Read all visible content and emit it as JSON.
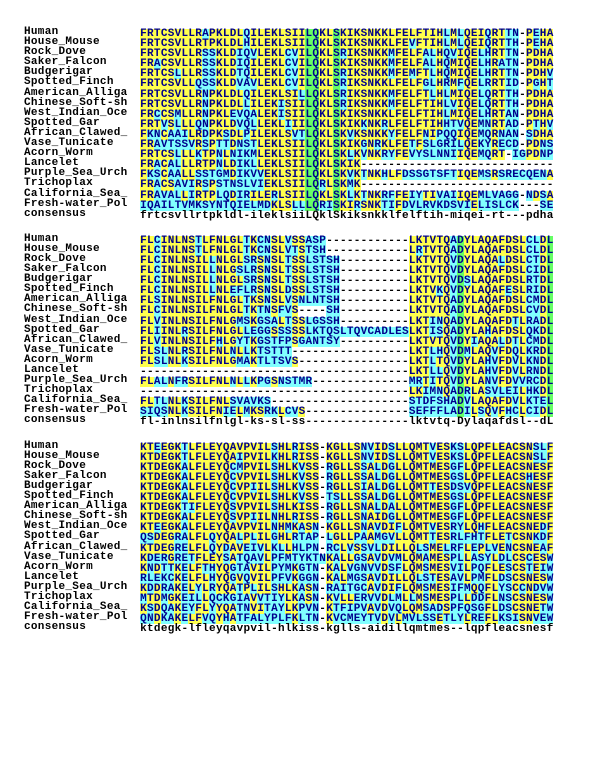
{
  "alignment": {
    "consensus_label": "consensus",
    "row_labels": [
      "Human",
      "House_Mouse",
      "Rock_Dove",
      "Saker_Falcon",
      "Budgerigar",
      "Spotted_Finch",
      "American_Alliga",
      "Chinese_Soft-sh",
      "West_Indian_Oce",
      "Spotted_Gar",
      "African_Clawed_",
      "Vase_Tunicate",
      "Acorn_Worm",
      "Lancelet",
      "Purple_Sea_Urch",
      "Trichoplax",
      "California_Sea_",
      "Fresh-water_Pol"
    ],
    "blocks": [
      {
        "sequences": [
          "FRTCSVLLRAPKLDLQILEKLSIILQKLSKIKSNKKLFELFTIHLMLQEIQRTTN-PEHA",
          "FRTCSVLLRTPKLDLHILEKLSIILQKLSKIKSNKKLFEVFTIHLMLQEIQRTTH-PEHA",
          "FRTCSVLLRSSKLDIQVLEKLCVILQKLSRIKSNKKMFELFALHQVIQELHRTTN-PDHA",
          "FRACSVLLRSSKLDIQILEKLCVILQKLSKIKSNKKMFELFALHQMIQELHRATN-PDHA",
          "FRTCSLLLRSSKLDTQILEKLCVILQKLSRIKSNKKMFEMFTLHQMIQELHRTTN-PDHV",
          "FRTCSVLLQSSKLDVAVLEKLCVILQKLSRIKSNKKLFELFGLHRMFQELRRTID-PGHT",
          "FRTCSVLLRNPKLDLQILEKLSILLQKLSRIKSNKKMFELFTLHLMIQELQRTTH-PDHA",
          "FRTCSVLLRNPKLDLLILEKISIILQKLSRIKSNKKMFELFTIHLVIQELQRTTH-PDHA",
          "FRCCSMLLRNPKLEVQALEKISIILQKLSKIKSNKKLFELFTIHLMIQELHRTAN-PDHA",
          "FRTVSLLLQNPKLDVQLLEKLIIILQKLSKIKKNKRLFELFTIHHTVQEMNRTAD-PTHV",
          "FKNCAAILRDPKSDLPILEKLSVTLQKLSKVKSNKKYFELFNIPQQIQEMQRNAN-SDHA",
          "FRAVTSSVRSPTTDNSTLEKLSIILQKLSKIKGNRKLFETFSLGRILQEKYRECD-PDNS",
          "FRTCSLLLKTPNLNIKMLEKLSIILQKLSKLKVNKRYFEVYSLNNIIQEMQRT-IGPDNP",
          "FRACALLLRTPNLDIKLLEKLSIILQKLSKIK----------------------------",
          "FKSCAALLSSTGMDIKVVEKLSIILQKLSKVKTNKHLFDSSGTSFTIQEMSRSRECQENA",
          "FRACSAVIRSPSTNSLVIEKLSIILQRLSKMK----------------------------",
          "FRAVALLIRTPLQDIRILERLSIILQKLSKLKTNKRFFEIYTIVAIIQEMLVAGG-NDSA",
          "IQAILTVMKSYNTQIELMDKLSLLLQRISKIRSNKTIFDVLRVKDSVIELISLCK---SE"
        ],
        "consensus": "frtcsvllrtpkldl-ileklsiiLQklSkiksnkklfelftih-miqei-rt---pdha"
      },
      {
        "sequences": [
          "FLCINLNSTLFNLGLTKCNSLVSSASP------------LKTVTQADYLAQAFDSLCLDL",
          "FLCINLNSTLFNLGLTKCNSLVTSTSH------------LRTVTQADYLAQAFDSLCLDL",
          "FLCINLNSILLNLGLSRSNSLTSSLSTSH----------LKTVTQVDYLAQALDSLCTDL",
          "FLCINLNSILLNLGSLRSNSLTSSLSTSH----------LKTVTQVDYLAQAFDSLCIDL",
          "FLCINLNSILLNLGLSRSNSLTSSLSTSH----------LKTVTQVDSLAQAFDSLRTDL",
          "FLCINLNSILLNLEFLRSNSLDSSLSTSH----------LKTVKQVDYLAQAFESLRIDL",
          "FLSINLNSILFNLGLTKSNSLVSNLNTSH----------LKTVTQADYLAQAFDSLCMDL",
          "FLCINLNSILFNLGLTKTNSFVS----SH----------LKTVTQADYLAQAFDSLCVDL",
          "FLVINLNSILFNLGMSKGSALTSSLGSSH----------LKTINQADYLAQAFDTLRADL",
          "FLIINLRSILFNLGLLEGGSSSSSLKTQSLTQVCADLESLKTISQADYLAHAFDSLQKDL",
          "FLVINLNSILFHLGYTKGSTFPSGANTSY----------LKTVTQVDYIAQALDTLCMDL",
          "FLSLNLRSILFNLNLLKTSTTT-----------------LKTLHQVDMLAQVFDQLKRDL",
          "FLSLNLKSILFNLGMAKTLTSVS----------------LKTLTQVDYLAHVFDVLKNDL",
          "---------------------------------------LKTLLQVDYLAHVFDVLRNDL",
          "FLALNFRSILFNLNLLKPGSNSTMR--------------MRTITQVDYLANVFDVVRCDL",
          "---------------------------------------LKIMNQADRLASVLEILHKDL",
          "FLTLNLKSILFNLSVAVKS--------------------STDFSHADVLAQAFDVLKTEL",
          "SIQSNLKSILFNIELMKSRKLCVS---------------SEFFFLADILSQVFHCLCIDL"
        ],
        "consensus": "fl-inlnsilfnlgl-ks-sl-ss---------------lktvtq-Dylaqafdsl--dL"
      },
      {
        "sequences": [
          "KTEEGKTLFLEYQAVPVILSHLRISS-KGLLSNVIDSLLQMTVESKSLQPFLEACSNSLF",
          "KTDEGKTLFLEYQAIPVILKHLRISS-KGLLSNVIDSLLQMTVESKSLQPFLEACSNSLF",
          "KTDEGKALFLEYQCMPVILSHLKVSS-RGLLSSALDGLLQMTMESGFLQPFLEACSNESF",
          "KTDEGKALFLEYQCVPVILSHLKVSS-RGLLSSALDGLLQMTMESGSLQPFLEACSHESF",
          "KTDEGKALFLEYQCVPIILSHLKVSS-RGLLSIALDGLLQMTTESDSVQPFLEACSNESF",
          "KTDEGKALFLEYQCVPVILSHLKVSS-TSLLSSALDGLLQMTMESGSLQPFLEACSNESF",
          "KTDEGKTIFLEYQSVPVILSHLKISS-RGLLSNALDALLQMTMESGFLQPFLEACSNESF",
          "KTDEGKALFLEYQSVPIILNHLRISS-RGLLSNAIDGLLQMTMESGFLQPFLEACSNESF",
          "KTEEGKALFLEYQAVPVILNHMKASN-KGLLSNAVDIFLQMTVESRYLQHFLEACSNEDF",
          "QSDEGRALFLQYQALPLILGHLRTAP-LGLLPAAMGVLLQMTTESRLFHTFLETCSNKDF",
          "KTDEGRELFLQYDAVEIVLKLLHLPN-RCLVSSVLDILLQLSMELRFLEPLVENCSNEAF",
          "KDERGRETFLEYSATQAVLPFMTYKTNKALLGSAVDVMLQMAMESPLLASYLDLCSCESW",
          "KNDTTKELFTHYQGTAVILPYMKGTN-KALVGNVVDSFLQMSMESVILPQFLESCSTEIW",
          "RLEKCKELFLHYQGVQVILPFVKGGN-KALMGSAVDILLQLSTESAVLPMFLDSCSNESW",
          "KDDRAKELYLRYQATPLILSHLKASN-RAITGCAVDIFLQMSMESIFMQQFLYSCCNDVW",
          "MTDMGKEILLQCKGIAVVTIYLKASN-KVLLERVVDLMLLMSMESPLLDDFLNSCSNESW",
          "KSDQAKEYFLYYQATNVITAYLKPVN-KTFIPVAVDVQLQMSADSPFQSGFLDSCSNETW",
          "QNDKAKELFVQYHATFALYPLFKLTN-KVCMEYTVDVLMVLSSETLYLREFLKSISNVEW"
        ],
        "consensus": "ktdegk-lfleyqavpvil-hlkiss-kglls-aidillqmtmes--lqpfleacsnesf"
      }
    ]
  },
  "palette": {
    "background": "#ffffff",
    "residue_text": "#00008b",
    "neutral_text": "#000000",
    "match_bg": "#ffff4d",
    "conserved_match_bg": "#66ff66",
    "mismatch_bg": "#80ffff"
  },
  "legend": {
    "match_bg_meaning": "residue matches consensus",
    "conserved_match_bg_meaning": "residue matches fully-conserved (uppercase) consensus column",
    "mismatch_bg_meaning": "residue differs from consensus",
    "gap_char": "-"
  }
}
